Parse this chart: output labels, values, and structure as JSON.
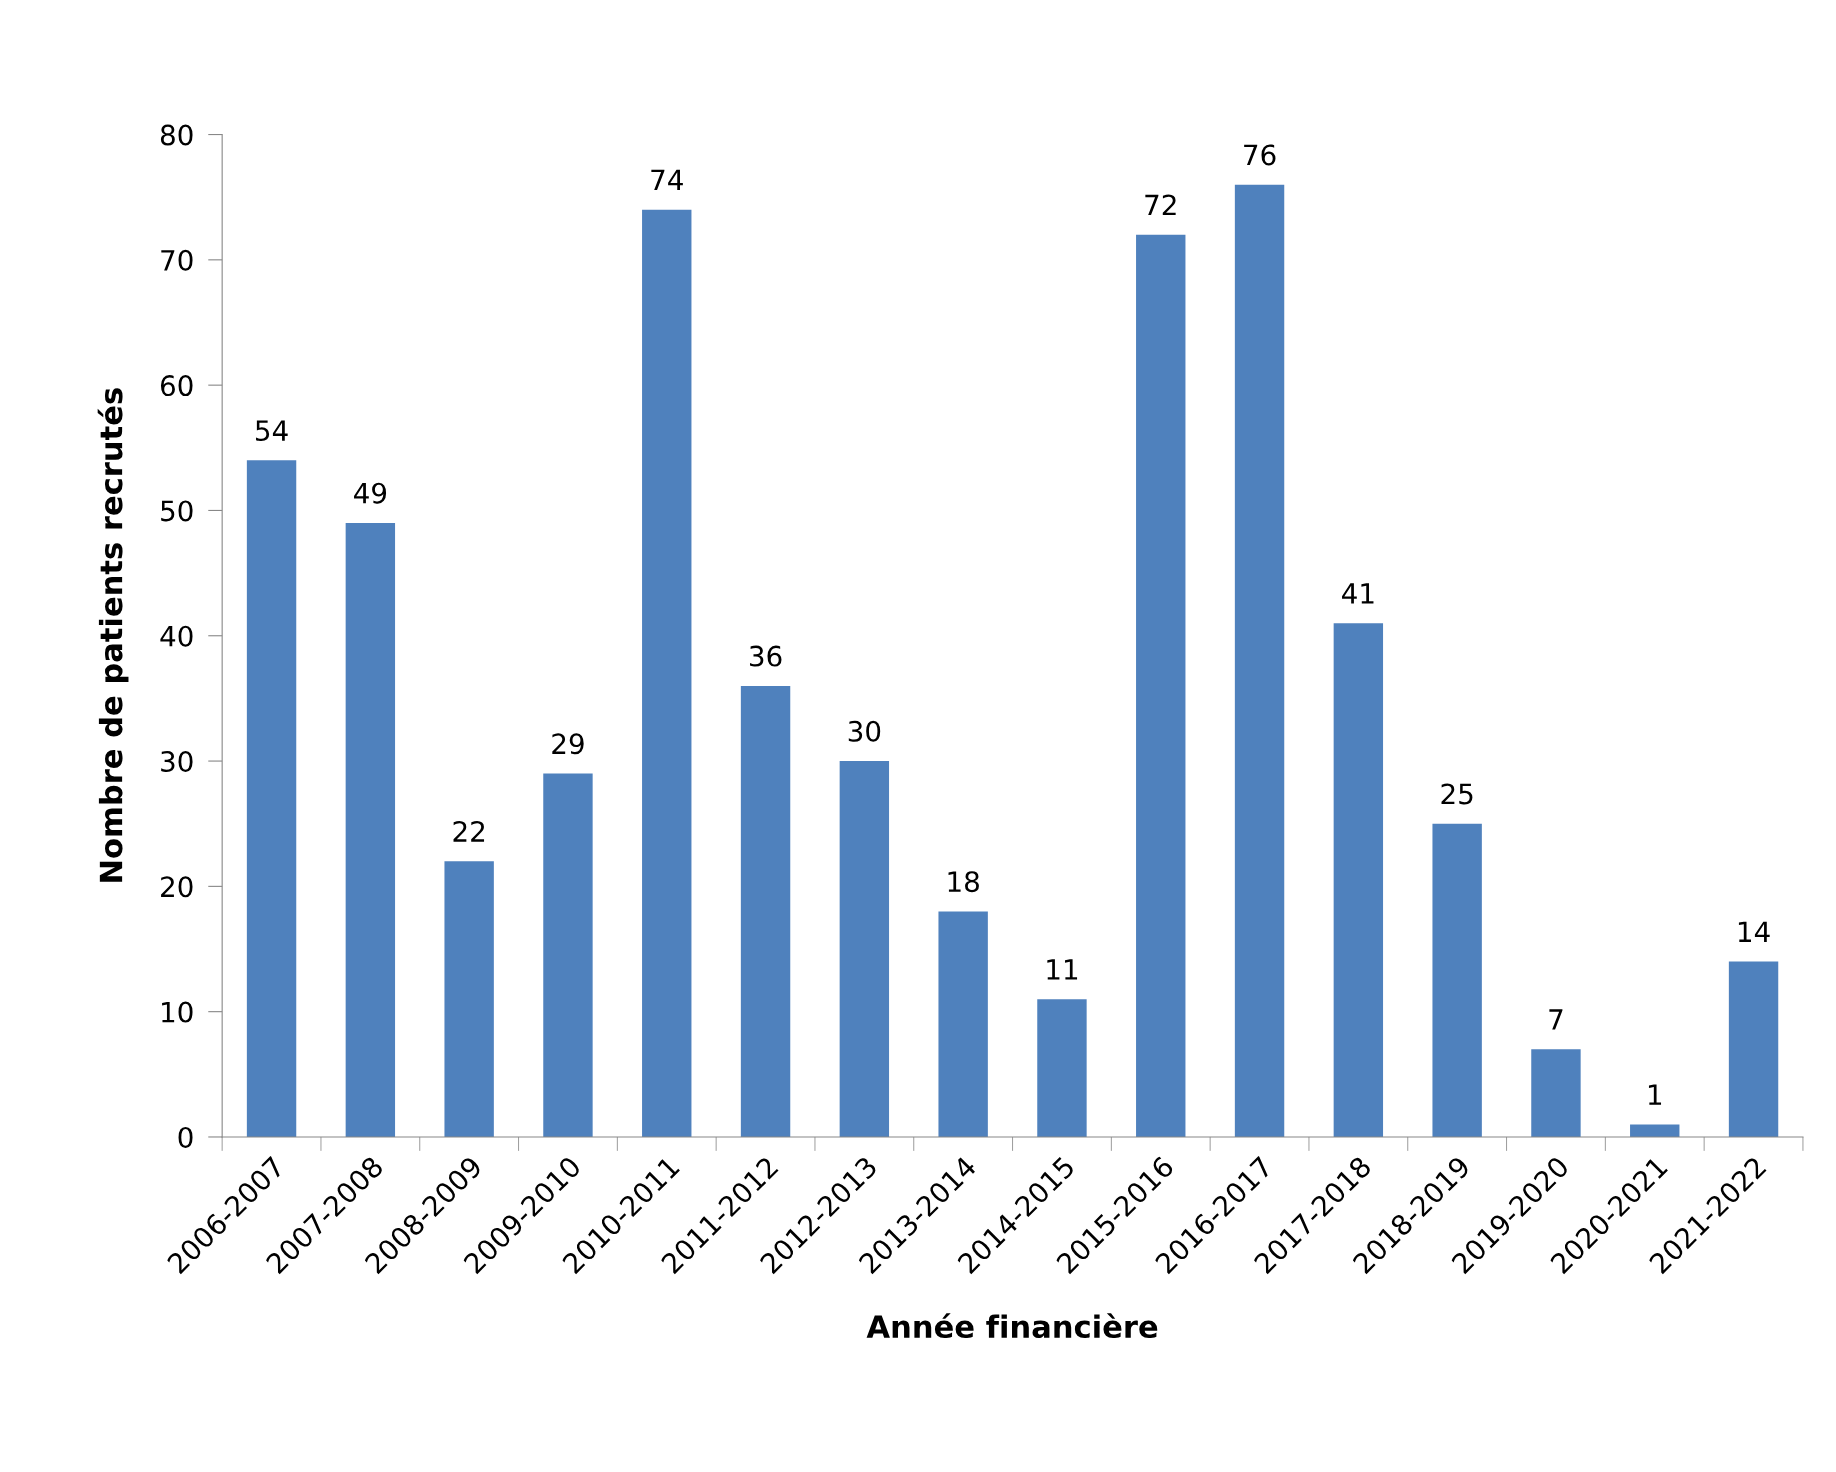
{
  "chart_data": {
    "type": "bar",
    "xlabel": "Année financière",
    "ylabel": "Nombre de patients recrutés",
    "categories": [
      "2006-2007",
      "2007-2008",
      "2008-2009",
      "2009-2010",
      "2010-2011",
      "2011-2012",
      "2012-2013",
      "2013-2014",
      "2014-2015",
      "2015-2016",
      "2016-2017",
      "2017-2018",
      "2018-2019",
      "2019-2020",
      "2020-2021",
      "2021-2022"
    ],
    "values": [
      54,
      49,
      22,
      29,
      74,
      36,
      30,
      18,
      11,
      72,
      76,
      41,
      25,
      7,
      1,
      14
    ],
    "color": "#4f81bd",
    "ylim": [
      0,
      80
    ],
    "yticks": [
      0,
      10,
      20,
      30,
      40,
      50,
      60,
      70,
      80
    ],
    "grid": false,
    "legend": false,
    "data_labels": true
  }
}
